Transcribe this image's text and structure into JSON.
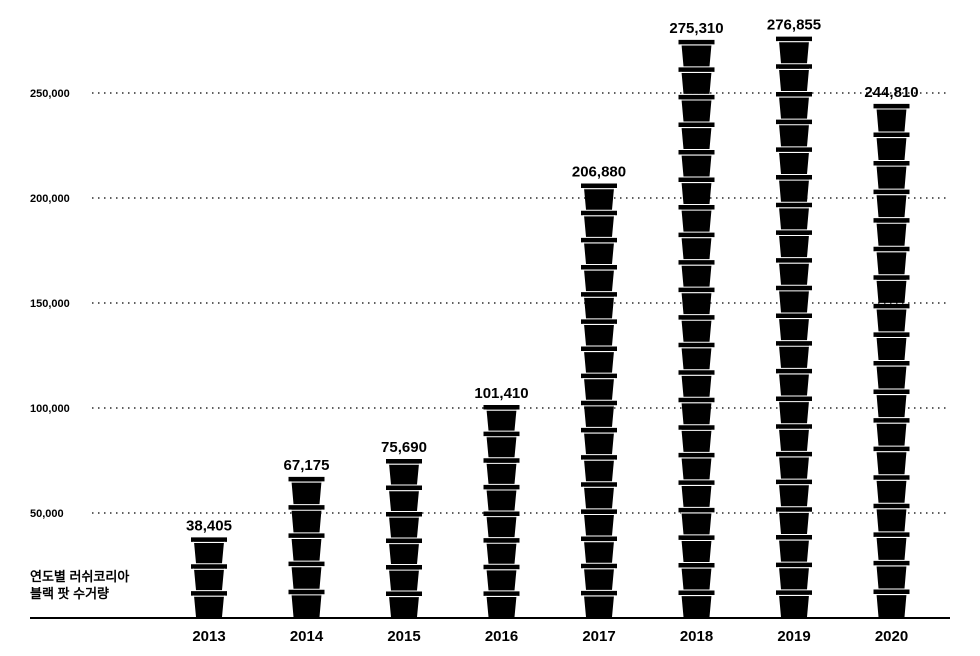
{
  "chart_data": {
    "type": "bar",
    "title": "",
    "caption_line1": "연도별 러쉬코리아",
    "caption_line2": "블랙 팟 수거량",
    "categories": [
      "2013",
      "2014",
      "2015",
      "2016",
      "2017",
      "2018",
      "2019",
      "2020"
    ],
    "values": [
      38405,
      67175,
      75690,
      101410,
      206880,
      275310,
      276855,
      244810
    ],
    "value_labels": [
      "38,405",
      "67,175",
      "75,690",
      "101,410",
      "206,880",
      "275,310",
      "276,855",
      "244,810"
    ],
    "yticks": [
      50000,
      100000,
      150000,
      200000,
      250000
    ],
    "ytick_labels": [
      "50,000",
      "100,000",
      "150,000",
      "200,000",
      "250,000"
    ],
    "ylim": [
      0,
      250000
    ],
    "grid": "dotted",
    "bar_style": "stacked black pots",
    "colors": {
      "pot": "#000000",
      "background": "#ffffff",
      "grid": "#000000"
    }
  }
}
